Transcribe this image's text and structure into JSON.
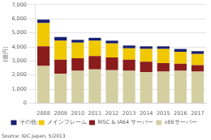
{
  "chart_data": {
    "type": "bar",
    "stacked": true,
    "categories": [
      "2008",
      "2009",
      "2010",
      "2011",
      "2012",
      "2013",
      "2014",
      "2015",
      "2016",
      "2017"
    ],
    "series": [
      {
        "name": "x86サーバー",
        "color": "#d4cfa0",
        "values": [
          2650,
          2100,
          2300,
          2400,
          2350,
          2300,
          2200,
          2250,
          2300,
          2250
        ]
      },
      {
        "name": "RISC & IA64 サーバー",
        "color": "#8b1c1c",
        "values": [
          1400,
          1000,
          900,
          950,
          900,
          800,
          750,
          600,
          500,
          450
        ]
      },
      {
        "name": "メインフレーム",
        "color": "#f0c800",
        "values": [
          1650,
          1350,
          1100,
          1100,
          1000,
          800,
          900,
          1000,
          850,
          800
        ]
      },
      {
        "name": "その他",
        "color": "#1a2070",
        "values": [
          250,
          250,
          200,
          200,
          200,
          200,
          200,
          200,
          200,
          200
        ]
      }
    ],
    "ylabel": "(億円)",
    "ylim": [
      0,
      7000
    ],
    "yticks": [
      0,
      {
        "value": 1000,
        "label": "1,000"
      },
      {
        "value": 2000,
        "label": "2,000"
      },
      {
        "value": 3000,
        "label": "3,000"
      },
      {
        "value": 4000,
        "label": "4,000"
      },
      {
        "value": 5000,
        "label": "5,000"
      },
      {
        "value": 6000,
        "label": "6,000"
      },
      {
        "value": 7000,
        "label": "7,000"
      }
    ],
    "grid": true,
    "legend": "bottom",
    "annotations": [
      "Source: IDC Japan, 5/2013"
    ]
  }
}
